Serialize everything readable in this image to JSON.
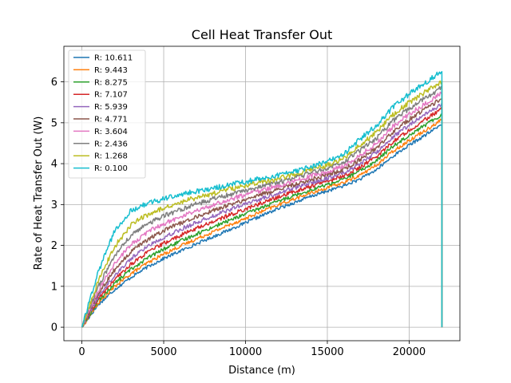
{
  "chart_data": {
    "type": "line",
    "title": "Cell Heat Transfer Out",
    "xlabel": "Distance (m)",
    "ylabel": "Rate of Heat Transfer Out (W)",
    "xlim": [
      -1100,
      23100
    ],
    "ylim": [
      -0.33,
      6.87
    ],
    "xticks": [
      0,
      5000,
      10000,
      15000,
      20000
    ],
    "xtick_labels": [
      "0",
      "5000",
      "10000",
      "15000",
      "20000"
    ],
    "yticks": [
      0,
      1,
      2,
      3,
      4,
      5,
      6
    ],
    "ytick_labels": [
      "0",
      "1",
      "2",
      "3",
      "4",
      "5",
      "6"
    ],
    "grid": true,
    "legend_position": "top-left",
    "x": [
      0,
      1000,
      2000,
      3000,
      4000,
      5000,
      6000,
      7000,
      8000,
      9000,
      10000,
      11000,
      12000,
      13000,
      14000,
      15000,
      16000,
      17000,
      18000,
      19000,
      20000,
      21000,
      22000
    ],
    "series": [
      {
        "name": "R: 10.611",
        "color": "#1f77b4",
        "values": [
          0,
          0.55,
          0.92,
          1.22,
          1.47,
          1.68,
          1.86,
          2.04,
          2.21,
          2.38,
          2.55,
          2.73,
          2.9,
          3.05,
          3.2,
          3.33,
          3.46,
          3.62,
          3.85,
          4.18,
          4.45,
          4.7,
          4.97
        ],
        "drop": 0
      },
      {
        "name": "R: 9.443",
        "color": "#ff7f0e",
        "values": [
          0,
          0.59,
          0.99,
          1.31,
          1.57,
          1.79,
          1.98,
          2.16,
          2.33,
          2.5,
          2.66,
          2.83,
          2.99,
          3.14,
          3.28,
          3.41,
          3.54,
          3.72,
          3.96,
          4.3,
          4.57,
          4.82,
          5.08
        ],
        "drop": 0
      },
      {
        "name": "R: 8.275",
        "color": "#2ca02c",
        "values": [
          0,
          0.64,
          1.07,
          1.42,
          1.69,
          1.91,
          2.1,
          2.28,
          2.45,
          2.61,
          2.77,
          2.93,
          3.08,
          3.23,
          3.36,
          3.49,
          3.62,
          3.82,
          4.07,
          4.42,
          4.7,
          4.95,
          5.2
        ],
        "drop": 0
      },
      {
        "name": "R: 7.107",
        "color": "#d62728",
        "values": [
          0,
          0.69,
          1.16,
          1.54,
          1.83,
          2.05,
          2.24,
          2.42,
          2.58,
          2.74,
          2.89,
          3.04,
          3.18,
          3.32,
          3.45,
          3.57,
          3.7,
          3.91,
          4.17,
          4.53,
          4.82,
          5.08,
          5.34
        ],
        "drop": 0
      },
      {
        "name": "R: 5.939",
        "color": "#9467bd",
        "values": [
          0,
          0.75,
          1.27,
          1.68,
          1.98,
          2.2,
          2.39,
          2.56,
          2.72,
          2.87,
          3.01,
          3.15,
          3.28,
          3.41,
          3.53,
          3.65,
          3.78,
          4.0,
          4.28,
          4.65,
          4.95,
          5.2,
          5.47
        ],
        "drop": 0
      },
      {
        "name": "R: 4.771",
        "color": "#8c564b",
        "values": [
          0,
          0.82,
          1.4,
          1.84,
          2.14,
          2.36,
          2.54,
          2.7,
          2.85,
          2.99,
          3.12,
          3.25,
          3.37,
          3.49,
          3.61,
          3.73,
          3.86,
          4.1,
          4.38,
          4.77,
          5.08,
          5.34,
          5.6
        ],
        "drop": 0
      },
      {
        "name": "R: 3.604",
        "color": "#e377c2",
        "values": [
          0,
          0.9,
          1.55,
          2.02,
          2.32,
          2.53,
          2.7,
          2.85,
          2.99,
          3.12,
          3.24,
          3.35,
          3.46,
          3.57,
          3.69,
          3.81,
          3.95,
          4.2,
          4.5,
          4.9,
          5.21,
          5.47,
          5.73
        ],
        "drop": 0
      },
      {
        "name": "R: 2.436",
        "color": "#7f7f7f",
        "values": [
          0,
          1.0,
          1.74,
          2.24,
          2.52,
          2.72,
          2.87,
          3.01,
          3.13,
          3.24,
          3.35,
          3.45,
          3.55,
          3.65,
          3.77,
          3.89,
          4.04,
          4.32,
          4.63,
          5.04,
          5.35,
          5.6,
          5.86
        ],
        "drop": 0
      },
      {
        "name": "R: 1.268",
        "color": "#bcbd22",
        "values": [
          0,
          1.13,
          1.97,
          2.5,
          2.75,
          2.92,
          3.05,
          3.17,
          3.27,
          3.37,
          3.46,
          3.55,
          3.64,
          3.74,
          3.85,
          3.97,
          4.13,
          4.45,
          4.77,
          5.19,
          5.5,
          5.75,
          6.02
        ],
        "drop": 0
      },
      {
        "name": "R: 0.100",
        "color": "#17becf",
        "values": [
          0,
          1.35,
          2.35,
          2.85,
          3.02,
          3.14,
          3.24,
          3.32,
          3.4,
          3.48,
          3.56,
          3.64,
          3.72,
          3.81,
          3.92,
          4.05,
          4.23,
          4.6,
          4.93,
          5.37,
          5.7,
          5.98,
          6.28
        ],
        "drop": 0
      }
    ]
  }
}
